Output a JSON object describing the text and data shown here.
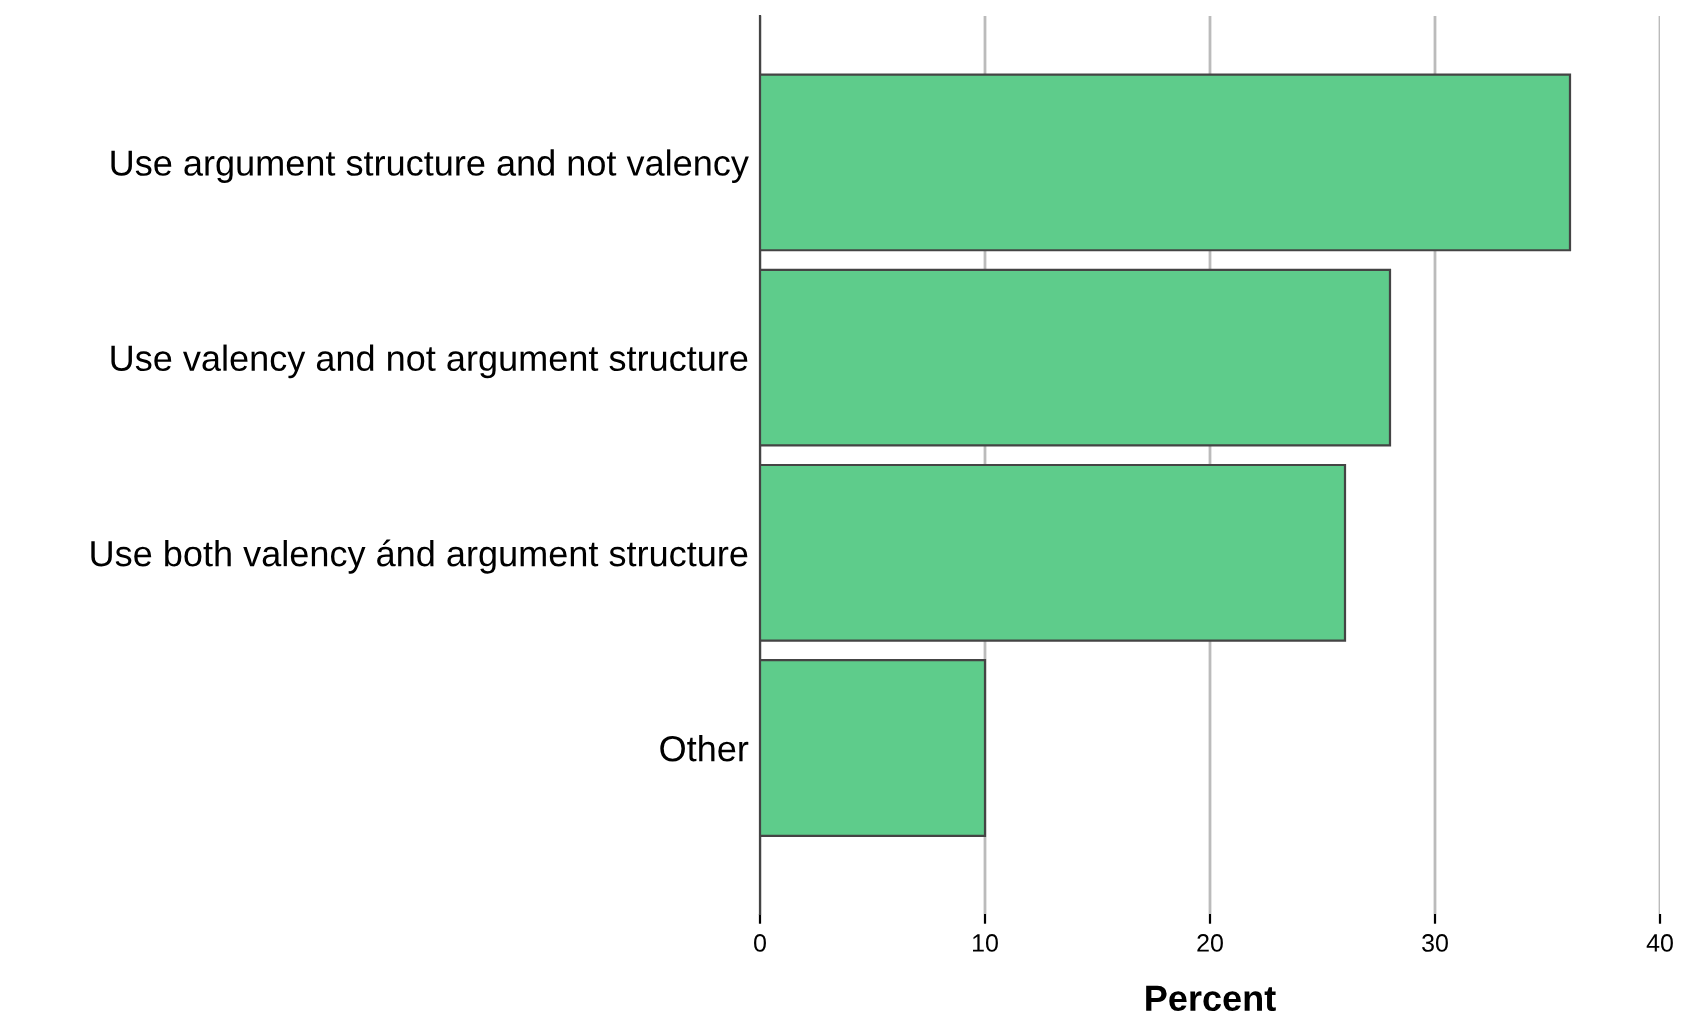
{
  "chart_data": {
    "type": "bar",
    "orientation": "horizontal",
    "xlabel": "Percent",
    "categories": [
      "Use argument structure and not valency",
      "Use valency and not argument structure",
      "Use both valency ánd argument structure",
      "Other"
    ],
    "values": [
      36,
      28,
      26,
      10
    ],
    "color": "#5ecc8b",
    "xlim": [
      0,
      40
    ],
    "xticks": [
      0,
      10,
      20,
      30,
      40
    ],
    "grid": "x"
  }
}
